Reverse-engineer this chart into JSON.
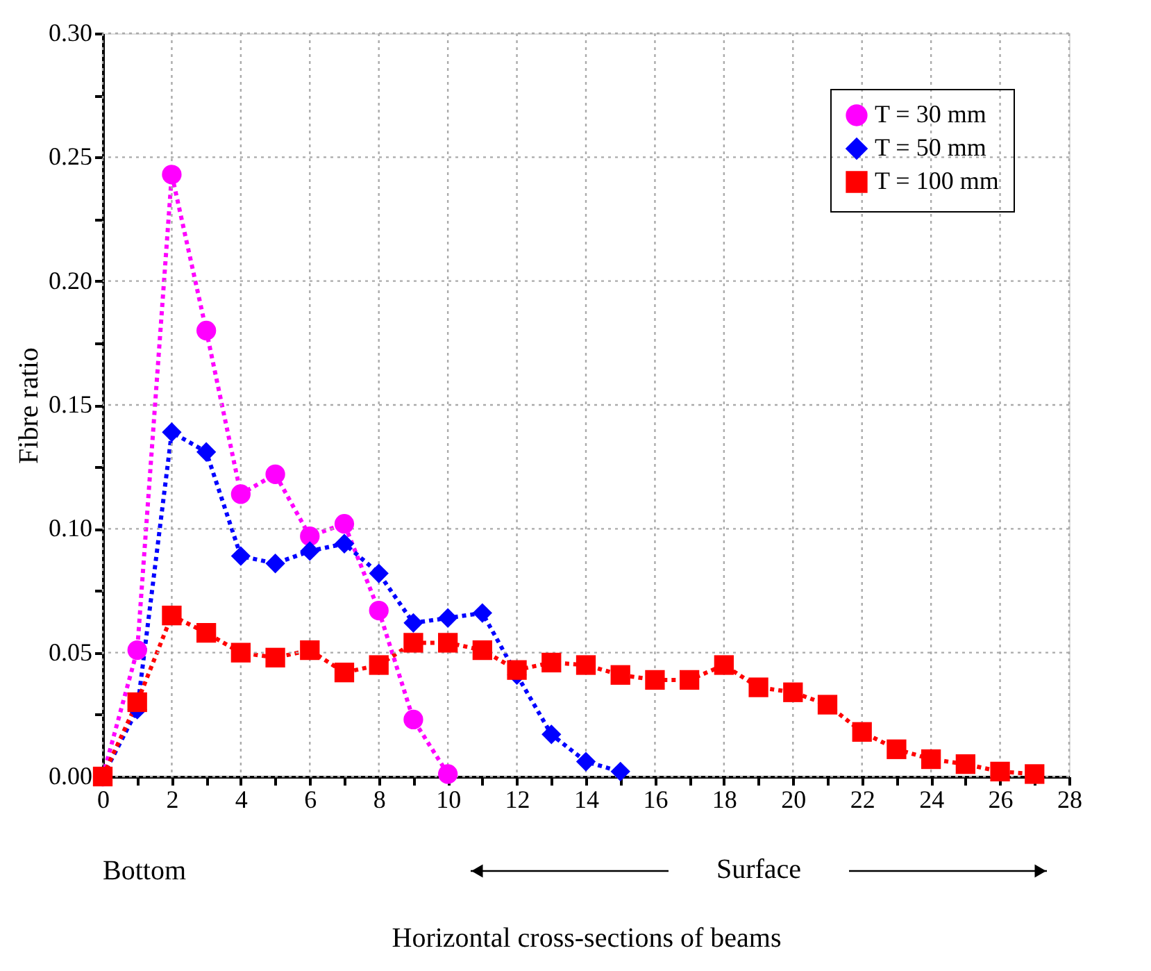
{
  "chart_data": {
    "type": "line",
    "xlabel": "Horizontal cross-sections of beams",
    "ylabel": "Fibre ratio",
    "annotations": [
      "Bottom",
      "Surface"
    ],
    "series": [
      {
        "name": "T = 30 mm",
        "color": "#ff00ff",
        "marker": "circle",
        "x": [
          0,
          1,
          2,
          3,
          4,
          5,
          6,
          7,
          8,
          9,
          10
        ],
        "values": [
          0,
          0.051,
          0.243,
          0.18,
          0.114,
          0.122,
          0.097,
          0.102,
          0.067,
          0.023,
          0.001
        ]
      },
      {
        "name": "T = 50 mm",
        "color": "#0000ff",
        "marker": "diamond",
        "x": [
          0,
          1,
          2,
          3,
          4,
          5,
          6,
          7,
          8,
          9,
          10,
          11,
          12,
          13,
          14,
          15
        ],
        "values": [
          0,
          0.027,
          0.139,
          0.131,
          0.089,
          0.086,
          0.091,
          0.094,
          0.082,
          0.062,
          0.064,
          0.066,
          0.041,
          0.017,
          0.006,
          0.002
        ]
      },
      {
        "name": "T = 100 mm",
        "color": "#ff0000",
        "marker": "square",
        "x": [
          0,
          1,
          2,
          3,
          4,
          5,
          6,
          7,
          8,
          9,
          10,
          11,
          12,
          13,
          14,
          15,
          16,
          17,
          18,
          19,
          20,
          21,
          22,
          23,
          24,
          25,
          26,
          27
        ],
        "values": [
          0,
          0.03,
          0.065,
          0.058,
          0.05,
          0.048,
          0.051,
          0.042,
          0.045,
          0.054,
          0.054,
          0.051,
          0.043,
          0.046,
          0.045,
          0.041,
          0.039,
          0.039,
          0.045,
          0.036,
          0.034,
          0.029,
          0.018,
          0.011,
          0.007,
          0.005,
          0.002,
          0.001
        ]
      }
    ],
    "xlim": [
      0,
      28
    ],
    "xticks": [
      0,
      {
        "value": 1,
        "label": null
      },
      2,
      {
        "value": 3,
        "label": null
      },
      4,
      {
        "value": 5,
        "label": null
      },
      6,
      {
        "value": 7,
        "label": null
      },
      8,
      {
        "value": 9,
        "label": null
      },
      10,
      {
        "value": 11,
        "label": null
      },
      12,
      {
        "value": 13,
        "label": null
      },
      14,
      {
        "value": 15,
        "label": null
      },
      16,
      {
        "value": 17,
        "label": null
      },
      18,
      {
        "value": 19,
        "label": null
      },
      20,
      {
        "value": 21,
        "label": null
      },
      22,
      {
        "value": 23,
        "label": null
      },
      24,
      {
        "value": 25,
        "label": null
      },
      26,
      {
        "value": 27,
        "label": null
      },
      28
    ],
    "ylim": [
      0,
      0.3
    ],
    "yticks": [
      {
        "value": 0,
        "label": "0.00"
      },
      {
        "value": 0.025,
        "label": null
      },
      {
        "value": 0.05,
        "label": "0.05"
      },
      {
        "value": 0.075,
        "label": null
      },
      {
        "value": 0.1,
        "label": "0.10"
      },
      {
        "value": 0.125,
        "label": null
      },
      {
        "value": 0.15,
        "label": "0.15"
      },
      {
        "value": 0.175,
        "label": null
      },
      {
        "value": 0.2,
        "label": "0.20"
      },
      {
        "value": 0.225,
        "label": null
      },
      {
        "value": 0.25,
        "label": "0.25"
      },
      {
        "value": 0.275,
        "label": null
      },
      {
        "value": 0.3,
        "label": "0.30"
      }
    ],
    "grid": true,
    "legend": "top right",
    "line_style": "dotted"
  }
}
